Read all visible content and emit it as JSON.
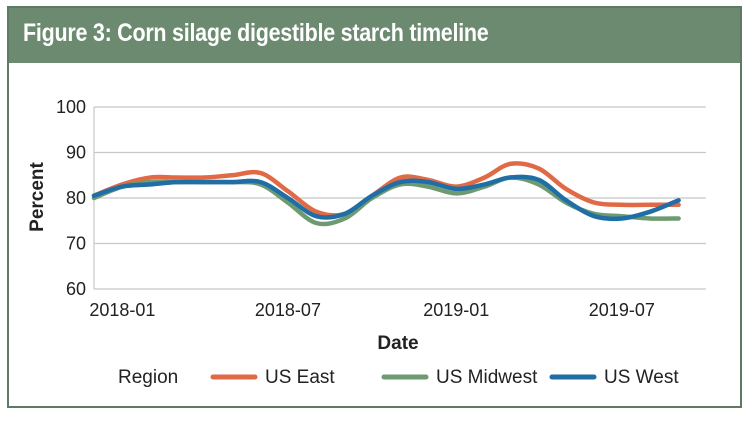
{
  "figure": {
    "title": "Figure 3: Corn silage digestible starch timeline"
  },
  "colors": {
    "header_bg": "#6c8a6f",
    "frame": "#5f7a62",
    "grid": "#c8c8c8",
    "US East": "#e06a45",
    "US Midwest": "#6e9a72",
    "US West": "#1f6fa6"
  },
  "chart_data": {
    "type": "line",
    "title": "Figure 3: Corn silage digestible starch timeline",
    "xlabel": "Date",
    "ylabel": "Percent",
    "ylim": [
      60,
      100
    ],
    "xlim": [
      "2017-12-01",
      "2019-10-01"
    ],
    "yticks": [
      60,
      70,
      80,
      90,
      100
    ],
    "xticks": [
      {
        "date": "2018-01-01",
        "label": "2018-01"
      },
      {
        "date": "2018-07-01",
        "label": "2018-07"
      },
      {
        "date": "2019-01-01",
        "label": "2019-01"
      },
      {
        "date": "2019-07-01",
        "label": "2019-07"
      }
    ],
    "grid": true,
    "legend": {
      "title": "Region",
      "position": "bottom"
    },
    "series": [
      {
        "name": "US East",
        "x": [
          "2017-12-01",
          "2018-01-01",
          "2018-02-01",
          "2018-03-01",
          "2018-04-01",
          "2018-05-01",
          "2018-06-01",
          "2018-07-01",
          "2018-08-01",
          "2018-09-01",
          "2018-10-01",
          "2018-11-01",
          "2018-12-01",
          "2019-01-01",
          "2019-02-01",
          "2019-03-01",
          "2019-04-01",
          "2019-05-01",
          "2019-06-01",
          "2019-07-01",
          "2019-08-01",
          "2019-09-01"
        ],
        "y": [
          80.5,
          83.0,
          84.5,
          84.5,
          84.5,
          85.0,
          85.5,
          81.5,
          77.0,
          76.5,
          80.5,
          84.5,
          84.0,
          82.5,
          84.5,
          87.5,
          86.5,
          82.0,
          79.0,
          78.5,
          78.5,
          78.5
        ]
      },
      {
        "name": "US Midwest",
        "x": [
          "2017-12-01",
          "2018-01-01",
          "2018-02-01",
          "2018-03-01",
          "2018-04-01",
          "2018-05-01",
          "2018-06-01",
          "2018-07-01",
          "2018-08-01",
          "2018-09-01",
          "2018-10-01",
          "2018-11-01",
          "2018-12-01",
          "2019-01-01",
          "2019-02-01",
          "2019-03-01",
          "2019-04-01",
          "2019-05-01",
          "2019-06-01",
          "2019-07-01",
          "2019-08-01",
          "2019-09-01"
        ],
        "y": [
          80.0,
          82.5,
          83.5,
          83.5,
          83.5,
          83.5,
          83.0,
          79.0,
          74.5,
          75.5,
          80.0,
          83.0,
          82.5,
          81.0,
          82.5,
          84.5,
          83.0,
          79.0,
          76.5,
          76.0,
          75.5,
          75.5
        ]
      },
      {
        "name": "US West",
        "x": [
          "2017-12-01",
          "2018-01-01",
          "2018-02-01",
          "2018-03-01",
          "2018-04-01",
          "2018-05-01",
          "2018-06-01",
          "2018-07-01",
          "2018-08-01",
          "2018-09-01",
          "2018-10-01",
          "2018-11-01",
          "2018-12-01",
          "2019-01-01",
          "2019-02-01",
          "2019-03-01",
          "2019-04-01",
          "2019-05-01",
          "2019-06-01",
          "2019-07-01",
          "2019-08-01",
          "2019-09-01"
        ],
        "y": [
          80.5,
          82.5,
          83.0,
          83.5,
          83.5,
          83.5,
          83.5,
          80.0,
          76.0,
          76.5,
          80.5,
          83.5,
          83.5,
          82.0,
          83.0,
          84.5,
          84.0,
          79.5,
          76.0,
          75.5,
          77.0,
          79.5
        ]
      }
    ]
  }
}
